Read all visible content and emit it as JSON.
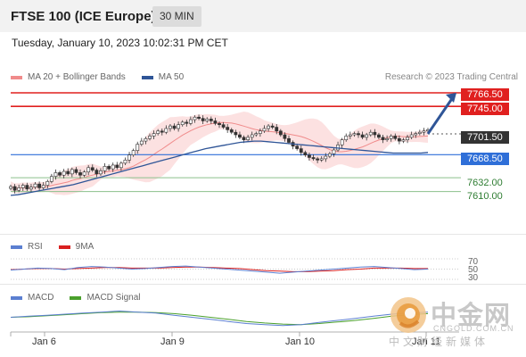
{
  "header": {
    "title": "FTSE 100 (ICE Europe)",
    "timeframe": "30 MIN"
  },
  "datetime": "Tuesday, January 10, 2023 10:02:31 PM CET",
  "legend": {
    "items": [
      {
        "label": "MA 20 + Bollinger Bands",
        "color": "#f08b8b"
      },
      {
        "label": "MA 50",
        "color": "#2f5597"
      }
    ],
    "credit": "Research © 2023 Trading Central"
  },
  "levels": [
    {
      "value": "7766.50",
      "style": "red"
    },
    {
      "value": "7745.00",
      "style": "red"
    },
    {
      "value": "7701.50",
      "style": "dark"
    },
    {
      "value": "7668.50",
      "style": "blue"
    },
    {
      "value": "7632.00",
      "style": "green"
    },
    {
      "value": "7610.00",
      "style": "green"
    }
  ],
  "rsi": {
    "legend": [
      {
        "label": "RSI",
        "color": "#5b7fd1"
      },
      {
        "label": "9MA",
        "color": "#d92020"
      }
    ],
    "scale": [
      "70",
      "50",
      "30"
    ]
  },
  "macd": {
    "legend": [
      {
        "label": "MACD",
        "color": "#5b7fd1"
      },
      {
        "label": "MACD Signal",
        "color": "#4aa02c"
      }
    ]
  },
  "xaxis": [
    "Jan 6",
    "Jan 9",
    "Jan 10",
    "Jan 11"
  ],
  "watermark": {
    "name": "中金网",
    "url": "CNGOLD.COM.CN",
    "tagline": "中文财经新媒体"
  },
  "chart_data": {
    "type": "candlestick",
    "title": "FTSE 100 (ICE Europe)",
    "timeframe": "30 MIN",
    "ylim": [
      7560,
      7775
    ],
    "key_levels": {
      "resistance": [
        7766.5,
        7745.0
      ],
      "pivot": 7668.5,
      "support": [
        7632.0,
        7610.0
      ],
      "last": 7701.5
    },
    "close": [
      7618,
      7612,
      7616,
      7620,
      7614,
      7617,
      7622,
      7616,
      7620,
      7626,
      7634,
      7640,
      7636,
      7642,
      7638,
      7645,
      7640,
      7636,
      7641,
      7648,
      7644,
      7638,
      7643,
      7650,
      7646,
      7652,
      7648,
      7655,
      7660,
      7668,
      7675,
      7685,
      7690,
      7694,
      7698,
      7702,
      7706,
      7704,
      7710,
      7714,
      7710,
      7716,
      7720,
      7718,
      7724,
      7728,
      7726,
      7722,
      7725,
      7722,
      7718,
      7716,
      7712,
      7708,
      7704,
      7700,
      7696,
      7692,
      7696,
      7700,
      7702,
      7706,
      7710,
      7714,
      7712,
      7706,
      7700,
      7694,
      7688,
      7682,
      7678,
      7672,
      7668,
      7664,
      7662,
      7660,
      7662,
      7666,
      7670,
      7676,
      7684,
      7692,
      7698,
      7700,
      7702,
      7700,
      7696,
      7700,
      7704,
      7700,
      7696,
      7692,
      7694,
      7698,
      7694,
      7690,
      7692,
      7696,
      7700,
      7702,
      7704,
      7706,
      7708
    ],
    "ma50": [
      7604,
      7605,
      7607,
      7609,
      7611,
      7613,
      7615,
      7617,
      7619,
      7621,
      7624,
      7627,
      7630,
      7633,
      7636,
      7639,
      7642,
      7645,
      7648,
      7651,
      7654,
      7657,
      7660,
      7663,
      7666,
      7669,
      7672,
      7675,
      7678,
      7680,
      7682,
      7684,
      7686,
      7688,
      7689,
      7690,
      7690,
      7689,
      7688,
      7687,
      7686,
      7685,
      7684,
      7683,
      7682,
      7681,
      7680,
      7679,
      7678,
      7677,
      7676,
      7675,
      7674,
      7673,
      7672,
      7671,
      7671,
      7671,
      7671,
      7671,
      7672
    ],
    "rsi": [
      48,
      50,
      52,
      51,
      49,
      53,
      55,
      54,
      52,
      50,
      51,
      53,
      55,
      56,
      54,
      52,
      50,
      48,
      46,
      44,
      42,
      44,
      46,
      48,
      50,
      52,
      54,
      55,
      53,
      51,
      49,
      50
    ],
    "rsi_ma": [
      49,
      50,
      51,
      51,
      50,
      51,
      52,
      53,
      53,
      52,
      52,
      52,
      53,
      54,
      54,
      53,
      52,
      51,
      49,
      47,
      46,
      45,
      45,
      46,
      47,
      49,
      50,
      52,
      52,
      52,
      51,
      51
    ],
    "macd": [
      0,
      1,
      2,
      3,
      4,
      5,
      6,
      5,
      4,
      2,
      0,
      -2,
      -4,
      -6,
      -7,
      -8,
      -7,
      -5,
      -3,
      -1,
      1,
      3,
      4,
      5
    ],
    "macd_signal": [
      0,
      0.5,
      1.5,
      2.5,
      3.5,
      4.5,
      5,
      5,
      4.5,
      3.5,
      2,
      0,
      -2,
      -4,
      -5.5,
      -6.5,
      -7,
      -6,
      -4.5,
      -3,
      -1,
      1,
      2.5,
      3.5
    ]
  }
}
